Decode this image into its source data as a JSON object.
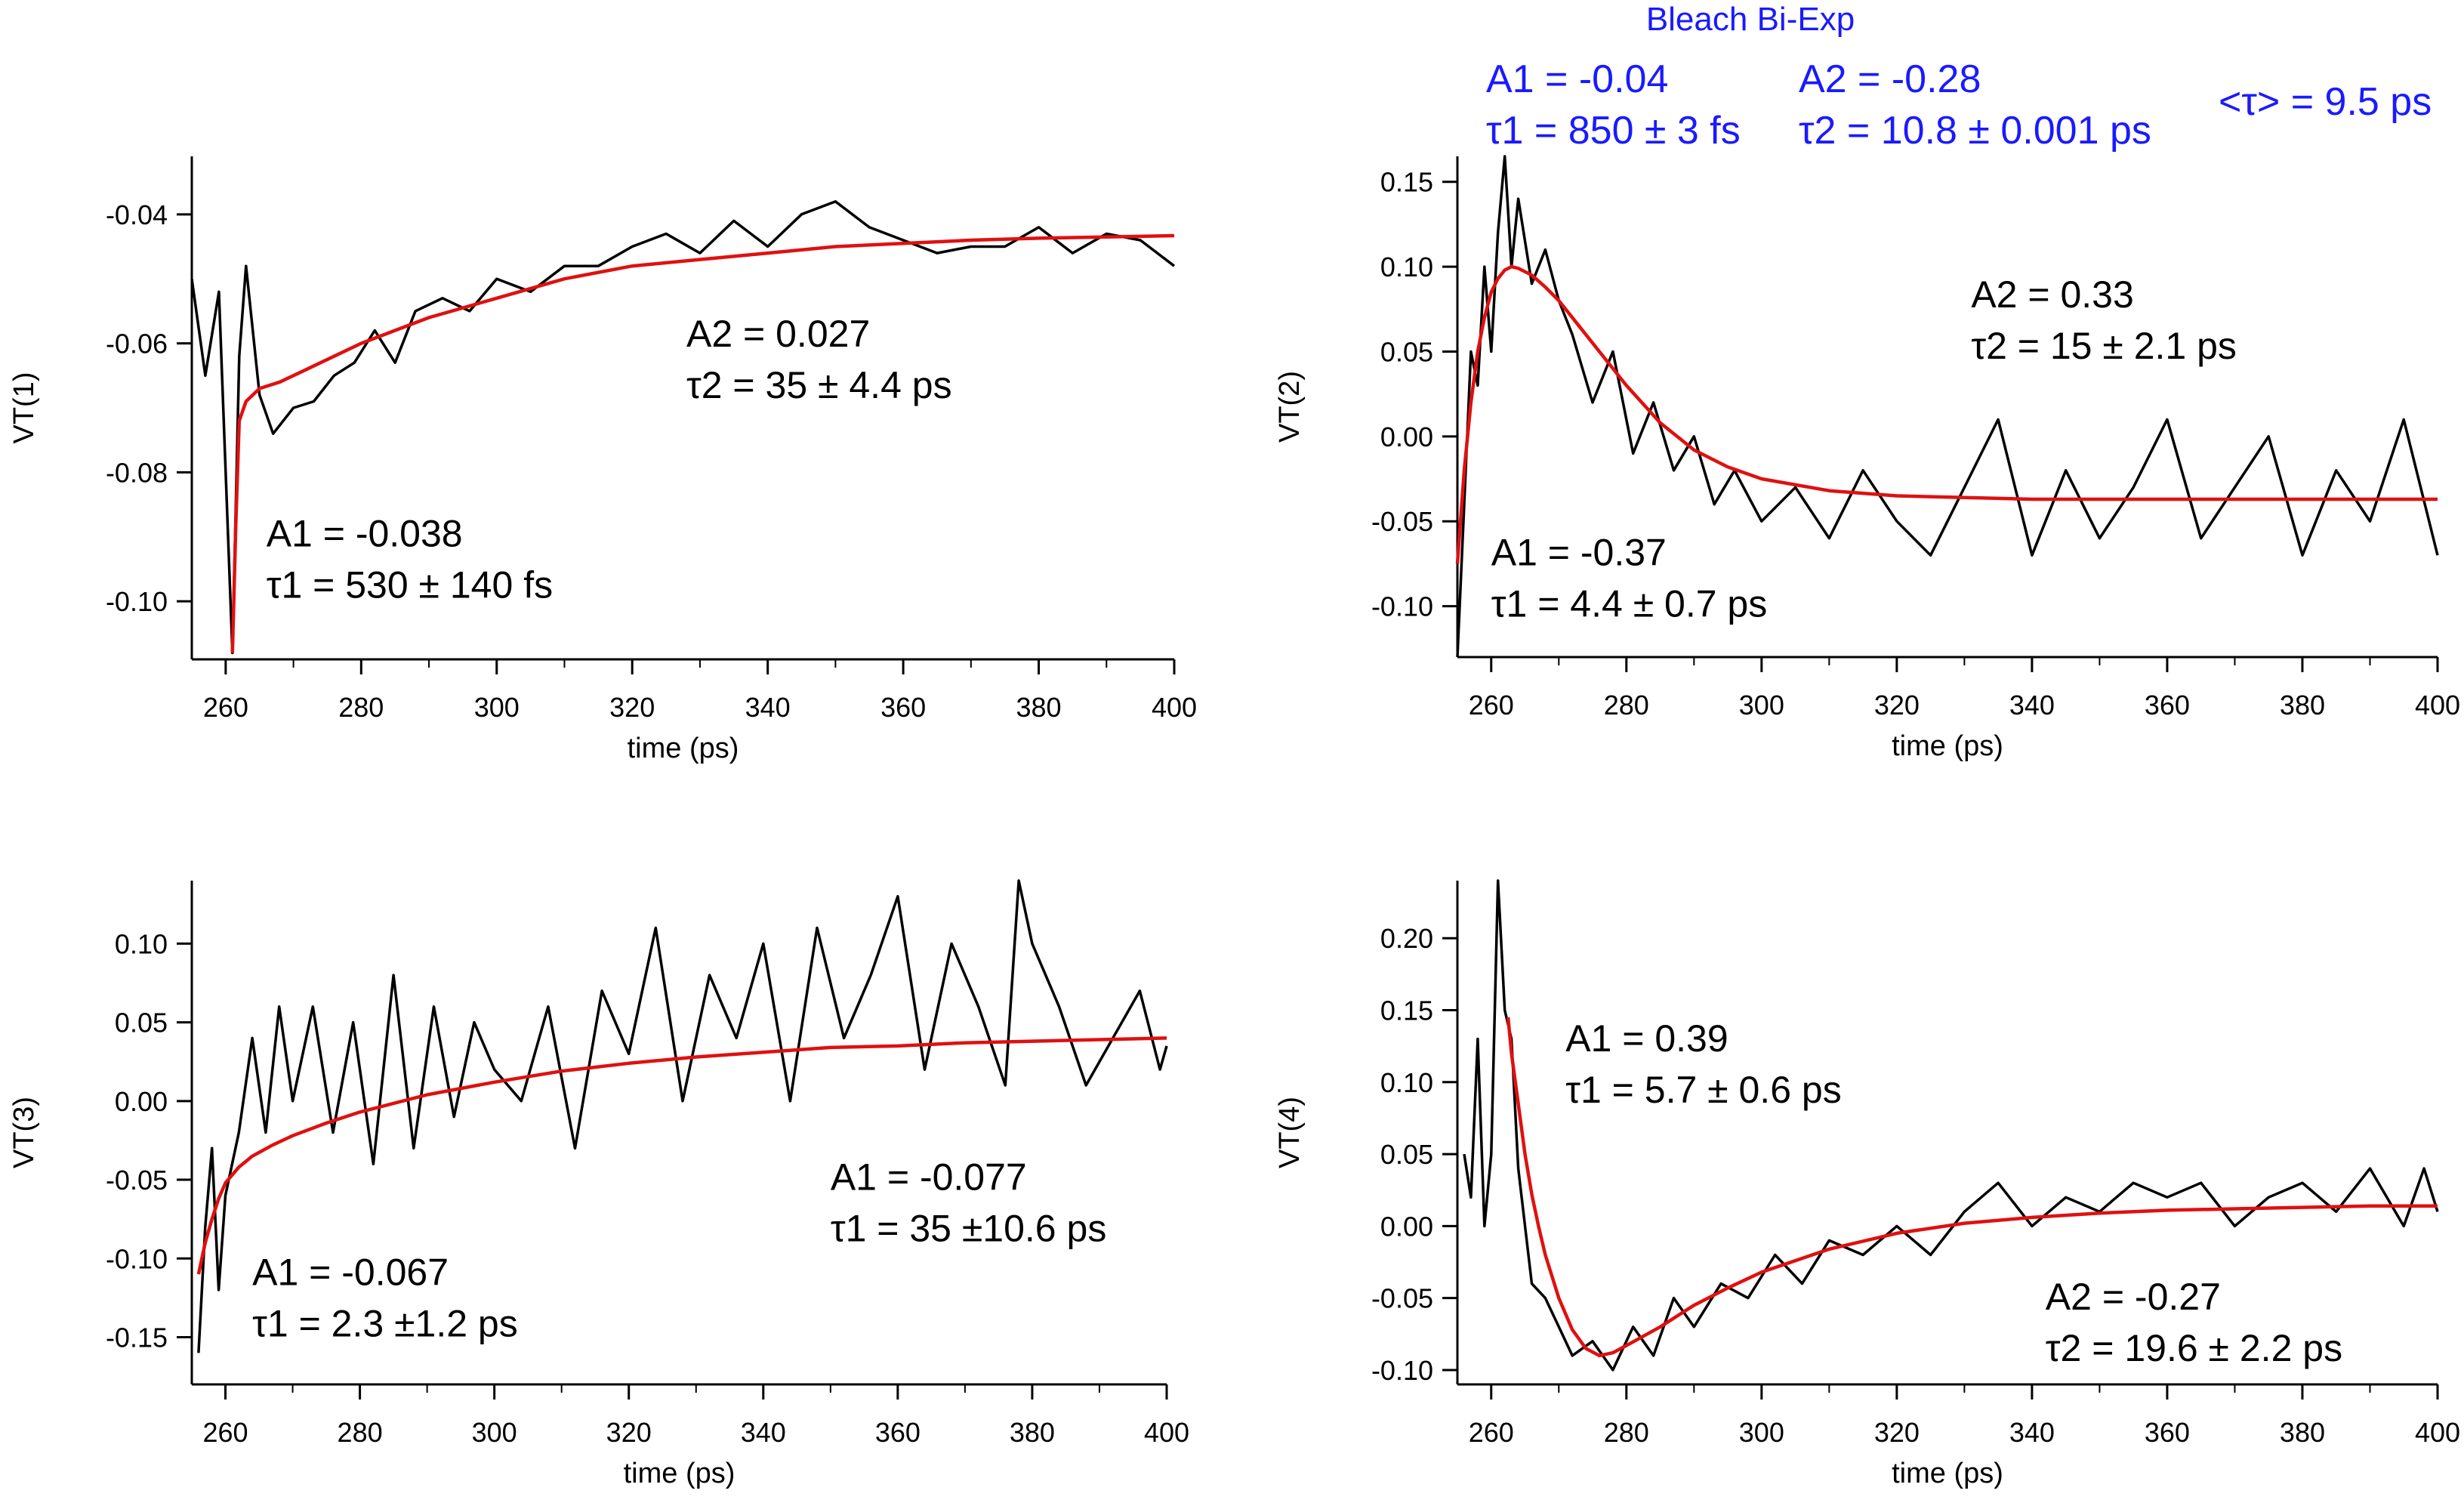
{
  "header": {
    "title": "Bleach Bi-Exp",
    "tau_avg": "<τ> = 9.5 ps",
    "a1": "A1 = -0.04",
    "tau1": "τ1 = 850 ± 3 fs",
    "a2": "A2 = -0.28",
    "tau2": "τ2 = 10.8 ± 0.001 ps"
  },
  "colors": {
    "data": "#000000",
    "fit": "#e01010",
    "header": "#1a1aff"
  },
  "chart_data": [
    {
      "id": "p1",
      "type": "line",
      "xlabel": "time (ps)",
      "ylabel": "VT(1)",
      "xlim": [
        255,
        400
      ],
      "ylim": [
        -0.109,
        -0.031
      ],
      "xticks": [
        260,
        280,
        300,
        320,
        340,
        360,
        380,
        400
      ],
      "yticks": [
        -0.1,
        -0.08,
        -0.06,
        -0.04
      ],
      "ytick_labels": [
        "-0.10",
        "-0.08",
        "-0.06",
        "-0.04"
      ],
      "annotations": [
        {
          "line1": "A2 = 0.027",
          "line2": "τ2 = 35 ± 4.4 ps",
          "x": 328,
          "y": -0.0605
        },
        {
          "line1": "A1 = -0.038",
          "line2": "τ1 = 530 ± 140 fs",
          "x": 266,
          "y": -0.0915
        }
      ],
      "series": [
        {
          "name": "data",
          "style": "data",
          "x": [
            255,
            257,
            259,
            261,
            262,
            263,
            265,
            267,
            270,
            273,
            276,
            279,
            282,
            285,
            288,
            292,
            296,
            300,
            305,
            310,
            315,
            320,
            325,
            330,
            335,
            340,
            345,
            350,
            355,
            360,
            365,
            370,
            375,
            380,
            385,
            390,
            395,
            400
          ],
          "y": [
            -0.05,
            -0.065,
            -0.052,
            -0.108,
            -0.062,
            -0.048,
            -0.068,
            -0.074,
            -0.07,
            -0.069,
            -0.065,
            -0.063,
            -0.058,
            -0.063,
            -0.055,
            -0.053,
            -0.055,
            -0.05,
            -0.052,
            -0.048,
            -0.048,
            -0.045,
            -0.043,
            -0.046,
            -0.041,
            -0.045,
            -0.04,
            -0.038,
            -0.042,
            -0.044,
            -0.046,
            -0.045,
            -0.045,
            -0.042,
            -0.046,
            -0.043,
            -0.044,
            -0.048
          ]
        },
        {
          "name": "fit",
          "style": "fit",
          "x": [
            261,
            261.5,
            262,
            263,
            265,
            268,
            272,
            276,
            280,
            285,
            290,
            300,
            310,
            320,
            330,
            340,
            350,
            360,
            370,
            380,
            390,
            400
          ],
          "y": [
            -0.108,
            -0.088,
            -0.072,
            -0.069,
            -0.067,
            -0.066,
            -0.064,
            -0.062,
            -0.06,
            -0.058,
            -0.056,
            -0.053,
            -0.05,
            -0.048,
            -0.047,
            -0.046,
            -0.045,
            -0.0445,
            -0.044,
            -0.0437,
            -0.0435,
            -0.0433
          ]
        }
      ]
    },
    {
      "id": "p2",
      "type": "line",
      "xlabel": "time (ps)",
      "ylabel": "VT(2)",
      "xlim": [
        255,
        400
      ],
      "ylim": [
        -0.13,
        0.165
      ],
      "xticks": [
        260,
        280,
        300,
        320,
        340,
        360,
        380,
        400
      ],
      "yticks": [
        -0.1,
        -0.05,
        0,
        0.05,
        0.1,
        0.15
      ],
      "ytick_labels": [
        "-0.10",
        "-0.05",
        "0.00",
        "0.05",
        "0.10",
        "0.15"
      ],
      "annotations": [
        {
          "line1": "A2 = 0.33",
          "line2": "τ2 = 15 ± 2.1 ps",
          "x": 331,
          "y": 0.076
        },
        {
          "line1": "A1 = -0.37",
          "line2": "τ1 = 4.4 ± 0.7 ps",
          "x": 260,
          "y": -0.076
        }
      ],
      "series": [
        {
          "name": "data",
          "style": "data",
          "x": [
            255,
            256,
            257,
            258,
            259,
            260,
            261,
            262,
            263,
            264,
            266,
            268,
            270,
            272,
            275,
            278,
            281,
            284,
            287,
            290,
            293,
            296,
            300,
            305,
            310,
            315,
            320,
            325,
            330,
            335,
            340,
            345,
            350,
            355,
            360,
            365,
            370,
            375,
            380,
            385,
            390,
            395,
            400
          ],
          "y": [
            -0.13,
            -0.04,
            0.05,
            0.03,
            0.1,
            0.05,
            0.12,
            0.165,
            0.1,
            0.14,
            0.09,
            0.11,
            0.08,
            0.06,
            0.02,
            0.05,
            -0.01,
            0.02,
            -0.02,
            0.0,
            -0.04,
            -0.02,
            -0.05,
            -0.03,
            -0.06,
            -0.02,
            -0.05,
            -0.07,
            -0.03,
            0.01,
            -0.07,
            -0.02,
            -0.06,
            -0.03,
            0.01,
            -0.06,
            -0.03,
            0.0,
            -0.07,
            -0.02,
            -0.05,
            0.01,
            -0.07
          ]
        },
        {
          "name": "fit",
          "style": "fit",
          "x": [
            255,
            256,
            257,
            258,
            259,
            260,
            261,
            262,
            263,
            264,
            266,
            268,
            270,
            273,
            276,
            280,
            285,
            290,
            295,
            300,
            310,
            320,
            330,
            340,
            360,
            380,
            400
          ],
          "y": [
            -0.075,
            -0.02,
            0.02,
            0.05,
            0.07,
            0.085,
            0.093,
            0.098,
            0.1,
            0.099,
            0.095,
            0.088,
            0.08,
            0.065,
            0.05,
            0.03,
            0.008,
            -0.008,
            -0.018,
            -0.025,
            -0.032,
            -0.035,
            -0.036,
            -0.037,
            -0.037,
            -0.037,
            -0.037
          ]
        }
      ]
    },
    {
      "id": "p3",
      "type": "line",
      "xlabel": "time (ps)",
      "ylabel": "VT(3)",
      "xlim": [
        255,
        400
      ],
      "ylim": [
        -0.18,
        0.14
      ],
      "xticks": [
        260,
        280,
        300,
        320,
        340,
        360,
        380,
        400
      ],
      "yticks": [
        -0.15,
        -0.1,
        -0.05,
        0,
        0.05,
        0.1
      ],
      "ytick_labels": [
        "-0.15",
        "-0.10",
        "-0.05",
        "0.00",
        "0.05",
        "0.10"
      ],
      "annotations": [
        {
          "line1": "A1 = -0.077",
          "line2": "τ1 = 35 ±10.6 ps",
          "x": 350,
          "y": -0.0565
        },
        {
          "line1": "A1 = -0.067",
          "line2": "τ1 = 2.3 ±1.2 ps",
          "x": 264,
          "y": -0.117
        }
      ],
      "series": [
        {
          "name": "data",
          "style": "data",
          "x": [
            256,
            257,
            258,
            259,
            260,
            262,
            264,
            266,
            268,
            270,
            273,
            276,
            279,
            282,
            285,
            288,
            291,
            294,
            297,
            300,
            304,
            308,
            312,
            316,
            320,
            324,
            328,
            332,
            336,
            340,
            344,
            348,
            352,
            356,
            360,
            364,
            368,
            372,
            376,
            378,
            380,
            384,
            388,
            392,
            396,
            399,
            400
          ],
          "y": [
            -0.16,
            -0.08,
            -0.03,
            -0.12,
            -0.06,
            -0.02,
            0.04,
            -0.02,
            0.06,
            0.0,
            0.06,
            -0.02,
            0.05,
            -0.04,
            0.08,
            -0.03,
            0.06,
            -0.01,
            0.05,
            0.02,
            0.0,
            0.06,
            -0.03,
            0.07,
            0.03,
            0.11,
            0.0,
            0.08,
            0.04,
            0.1,
            0.0,
            0.11,
            0.04,
            0.08,
            0.13,
            0.02,
            0.1,
            0.06,
            0.01,
            0.14,
            0.1,
            0.06,
            0.01,
            0.04,
            0.07,
            0.02,
            0.035
          ]
        },
        {
          "name": "fit",
          "style": "fit",
          "x": [
            256,
            257,
            258,
            259,
            260,
            262,
            264,
            267,
            270,
            275,
            280,
            290,
            300,
            310,
            320,
            330,
            340,
            350,
            360,
            370,
            380,
            390,
            400
          ],
          "y": [
            -0.11,
            -0.09,
            -0.075,
            -0.062,
            -0.052,
            -0.042,
            -0.035,
            -0.028,
            -0.022,
            -0.014,
            -0.007,
            0.004,
            0.012,
            0.019,
            0.024,
            0.028,
            0.031,
            0.034,
            0.035,
            0.037,
            0.038,
            0.039,
            0.04
          ]
        }
      ]
    },
    {
      "id": "p4",
      "type": "line",
      "xlabel": "time (ps)",
      "ylabel": "VT(4)",
      "xlim": [
        255,
        400
      ],
      "ylim": [
        -0.11,
        0.24
      ],
      "xticks": [
        260,
        280,
        300,
        320,
        340,
        360,
        380,
        400
      ],
      "yticks": [
        -0.1,
        -0.05,
        0,
        0.05,
        0.1,
        0.15,
        0.2
      ],
      "ytick_labels": [
        "-0.10",
        "-0.05",
        "0.00",
        "0.05",
        "0.10",
        "0.15",
        "0.20"
      ],
      "annotations": [
        {
          "line1": "A1 = 0.39",
          "line2": "τ1 = 5.7 ± 0.6 ps",
          "x": 271,
          "y": 0.1215
        },
        {
          "line1": "A2 = -0.27",
          "line2": "τ2 = 19.6 ± 2.2 ps",
          "x": 342,
          "y": -0.058
        }
      ],
      "series": [
        {
          "name": "data",
          "style": "data",
          "x": [
            256,
            257,
            258,
            259,
            260,
            261,
            262,
            263,
            264,
            266,
            268,
            270,
            272,
            275,
            278,
            281,
            284,
            287,
            290,
            294,
            298,
            302,
            306,
            310,
            315,
            320,
            325,
            330,
            335,
            340,
            345,
            350,
            355,
            360,
            365,
            370,
            375,
            380,
            385,
            390,
            395,
            398,
            400
          ],
          "y": [
            0.05,
            0.02,
            0.13,
            0.0,
            0.05,
            0.24,
            0.15,
            0.13,
            0.04,
            -0.04,
            -0.05,
            -0.07,
            -0.09,
            -0.08,
            -0.1,
            -0.07,
            -0.09,
            -0.05,
            -0.07,
            -0.04,
            -0.05,
            -0.02,
            -0.04,
            -0.01,
            -0.02,
            0.0,
            -0.02,
            0.01,
            0.03,
            0.0,
            0.02,
            0.01,
            0.03,
            0.02,
            0.03,
            0.0,
            0.02,
            0.03,
            0.01,
            0.04,
            0.0,
            0.04,
            0.01
          ]
        },
        {
          "name": "fit",
          "style": "fit",
          "x": [
            262.5,
            263,
            264,
            265,
            266,
            267,
            268,
            270,
            272,
            274,
            276,
            278,
            280,
            285,
            290,
            295,
            300,
            310,
            320,
            330,
            340,
            350,
            360,
            370,
            380,
            390,
            400
          ],
          "y": [
            0.145,
            0.12,
            0.085,
            0.05,
            0.022,
            0.0,
            -0.02,
            -0.05,
            -0.072,
            -0.085,
            -0.09,
            -0.088,
            -0.083,
            -0.07,
            -0.055,
            -0.043,
            -0.032,
            -0.016,
            -0.005,
            0.002,
            0.006,
            0.009,
            0.011,
            0.012,
            0.013,
            0.014,
            0.014
          ]
        }
      ]
    }
  ]
}
